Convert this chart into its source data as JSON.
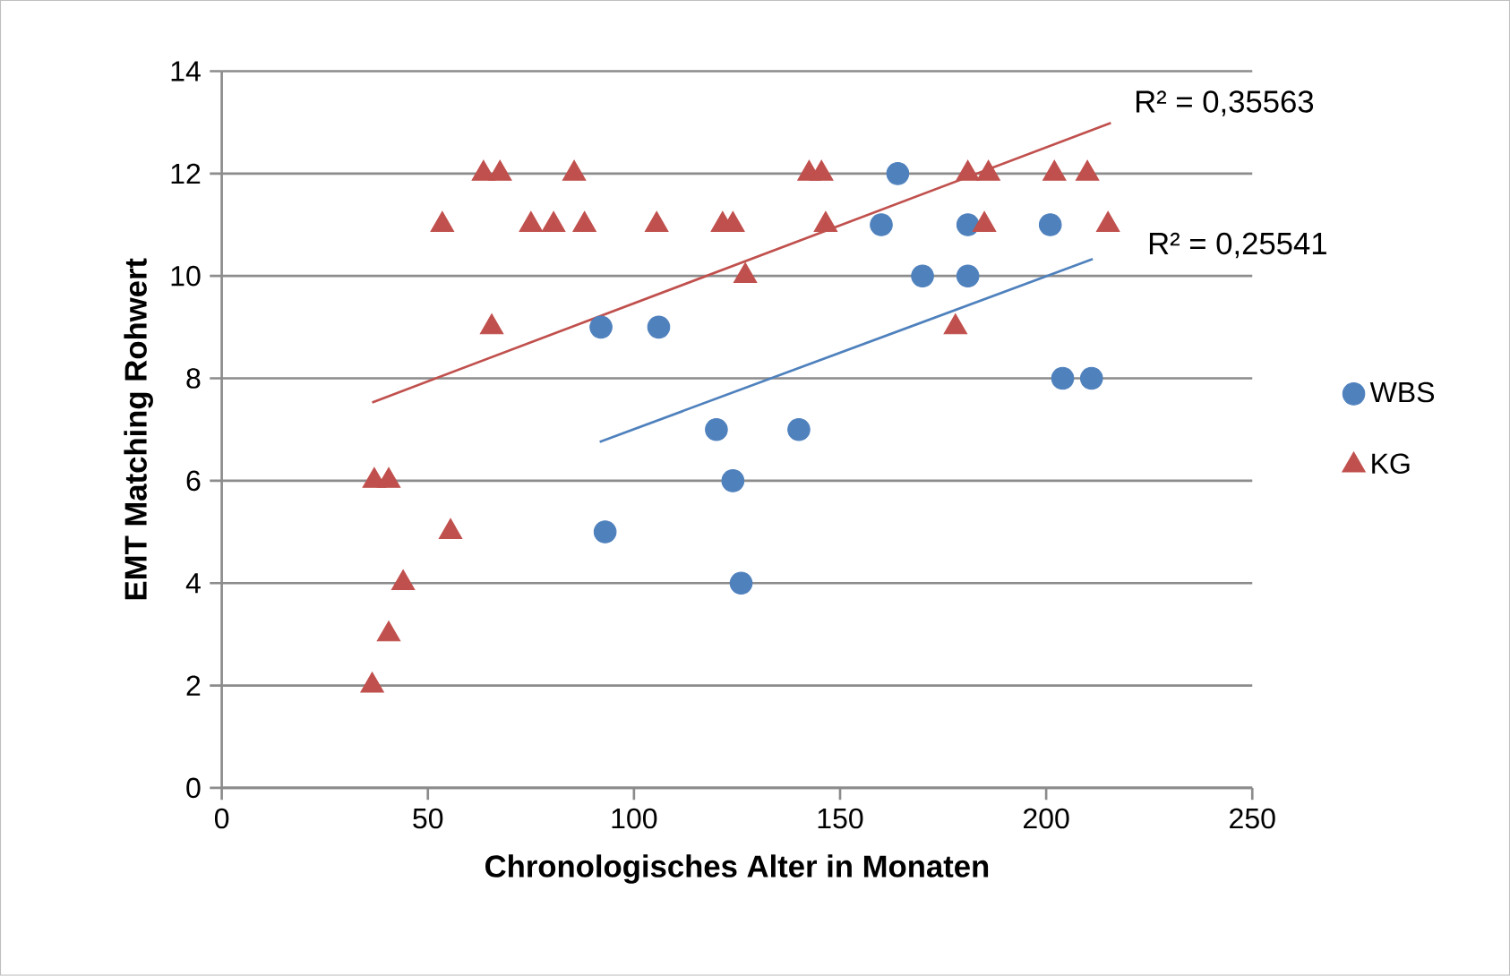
{
  "chart_data": {
    "type": "scatter",
    "xlabel": "Chronologisches Alter in Monaten",
    "ylabel": "EMT Matching Rohwert",
    "xlim": [
      0,
      250
    ],
    "xticks": [
      0,
      50,
      100,
      150,
      200,
      250
    ],
    "ylim": [
      0,
      14
    ],
    "yticks": [
      0,
      2,
      4,
      6,
      8,
      10,
      12,
      14
    ],
    "grid": "y",
    "legend": "right",
    "series": [
      {
        "name": "WBS",
        "color": "#4f81bd",
        "marker": "circle",
        "x": [
          92,
          106,
          93,
          120,
          124,
          126,
          140,
          160,
          164,
          170,
          181,
          181,
          201,
          204,
          211
        ],
        "values": [
          9,
          9,
          5,
          7,
          6,
          4,
          7,
          11,
          12,
          10,
          10,
          11,
          11,
          8,
          8
        ]
      },
      {
        "name": "KG",
        "color": "#c0504d",
        "marker": "triangle",
        "x": [
          36.5,
          40.5,
          44,
          37,
          40.5,
          55.5,
          53.5,
          65.5,
          63.5,
          67.5,
          75,
          80.5,
          85.5,
          88,
          105.5,
          121.5,
          124,
          127,
          142.5,
          145.5,
          146.5,
          178,
          181,
          185,
          186,
          202,
          210,
          215
        ],
        "values": [
          2,
          3,
          4,
          6,
          6,
          5,
          11,
          9,
          12,
          12,
          11,
          11,
          12,
          11,
          11,
          11,
          11,
          10,
          12,
          12,
          11,
          9,
          12,
          11,
          12,
          12,
          12,
          11
        ]
      },
      {
        "type": "line",
        "color": "#4f81bd",
        "marker": "none",
        "x": [
          91.7,
          211.3
        ],
        "values": [
          6.76,
          10.33
        ]
      },
      {
        "type": "line",
        "color": "#c0504d",
        "marker": "none",
        "x": [
          36.5,
          215.7
        ],
        "values": [
          7.53,
          12.99
        ]
      }
    ],
    "annotations": [
      "R² = 0,35563",
      "R² = 0,25541"
    ]
  }
}
